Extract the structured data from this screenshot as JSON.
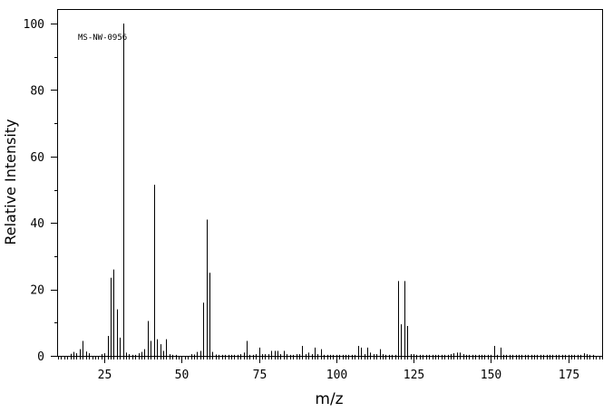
{
  "chart_data": {
    "type": "bar",
    "annotation": "MS-NW-0956",
    "xlabel": "m/z",
    "ylabel": "Relative Intensity",
    "xlim": [
      10,
      186
    ],
    "ylim": [
      0,
      100
    ],
    "x_ticks": [
      25,
      50,
      75,
      100,
      125,
      150,
      175
    ],
    "y_ticks": [
      0,
      20,
      40,
      60,
      80,
      100
    ],
    "grid": false,
    "series": [
      {
        "x": [
          14,
          15,
          16,
          17,
          18,
          19,
          20,
          24,
          25,
          26,
          27,
          28,
          29,
          30,
          31,
          32,
          33,
          34,
          35,
          36,
          37,
          38,
          39,
          40,
          41,
          42,
          43,
          44,
          45,
          46,
          47,
          48,
          53,
          54,
          55,
          56,
          57,
          58,
          59,
          60,
          61,
          62,
          63,
          64,
          65,
          66,
          67,
          68,
          69,
          70,
          71,
          72,
          73,
          74,
          75,
          76,
          77,
          78,
          79,
          80,
          81,
          82,
          83,
          84,
          85,
          86,
          87,
          88,
          89,
          90,
          91,
          92,
          93,
          94,
          95,
          96,
          97,
          98,
          99,
          100,
          101,
          102,
          103,
          104,
          105,
          106,
          107,
          108,
          109,
          110,
          111,
          112,
          113,
          114,
          115,
          116,
          117,
          118,
          119,
          120,
          121,
          122,
          123,
          124,
          125,
          126,
          127,
          128,
          129,
          130,
          131,
          132,
          133,
          134,
          135,
          136,
          137,
          138,
          139,
          140,
          141,
          142,
          143,
          144,
          145,
          146,
          147,
          148,
          149,
          150,
          151,
          152,
          153,
          154,
          155,
          156,
          157,
          158,
          159,
          160,
          161,
          162,
          163,
          164,
          165,
          166,
          167,
          168,
          169,
          170,
          171,
          172,
          173,
          174,
          175,
          176,
          177,
          178,
          179,
          180,
          181,
          182,
          183
        ],
        "values": [
          0.6,
          1.2,
          0.8,
          2.0,
          4.5,
          1.3,
          0.8,
          0.5,
          0.8,
          6.0,
          23.5,
          26.0,
          14.0,
          5.5,
          100.0,
          1.0,
          0.5,
          0.3,
          0.3,
          0.8,
          1.2,
          2.0,
          10.5,
          4.5,
          51.5,
          5.0,
          3.5,
          1.5,
          5.0,
          0.5,
          0.3,
          0.3,
          0.5,
          0.4,
          1.2,
          1.5,
          16.0,
          41.0,
          25.0,
          1.2,
          0.4,
          0.3,
          0.3,
          0.3,
          0.3,
          0.3,
          0.3,
          0.3,
          0.5,
          1.0,
          4.5,
          0.3,
          0.3,
          0.5,
          2.5,
          0.5,
          0.5,
          0.5,
          1.5,
          1.5,
          1.5,
          0.5,
          1.5,
          0.5,
          0.3,
          0.3,
          0.5,
          0.5,
          3.0,
          0.5,
          1.0,
          0.5,
          2.5,
          0.5,
          2.0,
          0.3,
          0.3,
          0.3,
          0.3,
          0.3,
          0.3,
          0.3,
          0.3,
          0.3,
          0.3,
          0.3,
          3.0,
          2.5,
          0.5,
          2.5,
          1.0,
          0.5,
          0.5,
          2.0,
          0.5,
          0.3,
          0.3,
          0.3,
          0.3,
          22.5,
          9.5,
          22.5,
          9.0,
          0.5,
          0.5,
          0.3,
          0.3,
          0.3,
          0.3,
          0.3,
          0.3,
          0.3,
          0.3,
          0.3,
          0.3,
          0.3,
          0.5,
          0.8,
          1.0,
          1.0,
          0.5,
          0.3,
          0.3,
          0.3,
          0.3,
          0.3,
          0.3,
          0.3,
          0.3,
          0.3,
          3.0,
          0.3,
          2.5,
          0.3,
          0.3,
          0.3,
          0.3,
          0.3,
          0.3,
          0.3,
          0.3,
          0.3,
          0.3,
          0.3,
          0.3,
          0.3,
          0.3,
          0.3,
          0.3,
          0.3,
          0.3,
          0.3,
          0.3,
          0.3,
          0.3,
          0.3,
          0.3,
          0.3,
          0.3,
          0.8,
          0.5,
          0.3,
          0.3
        ]
      }
    ]
  }
}
